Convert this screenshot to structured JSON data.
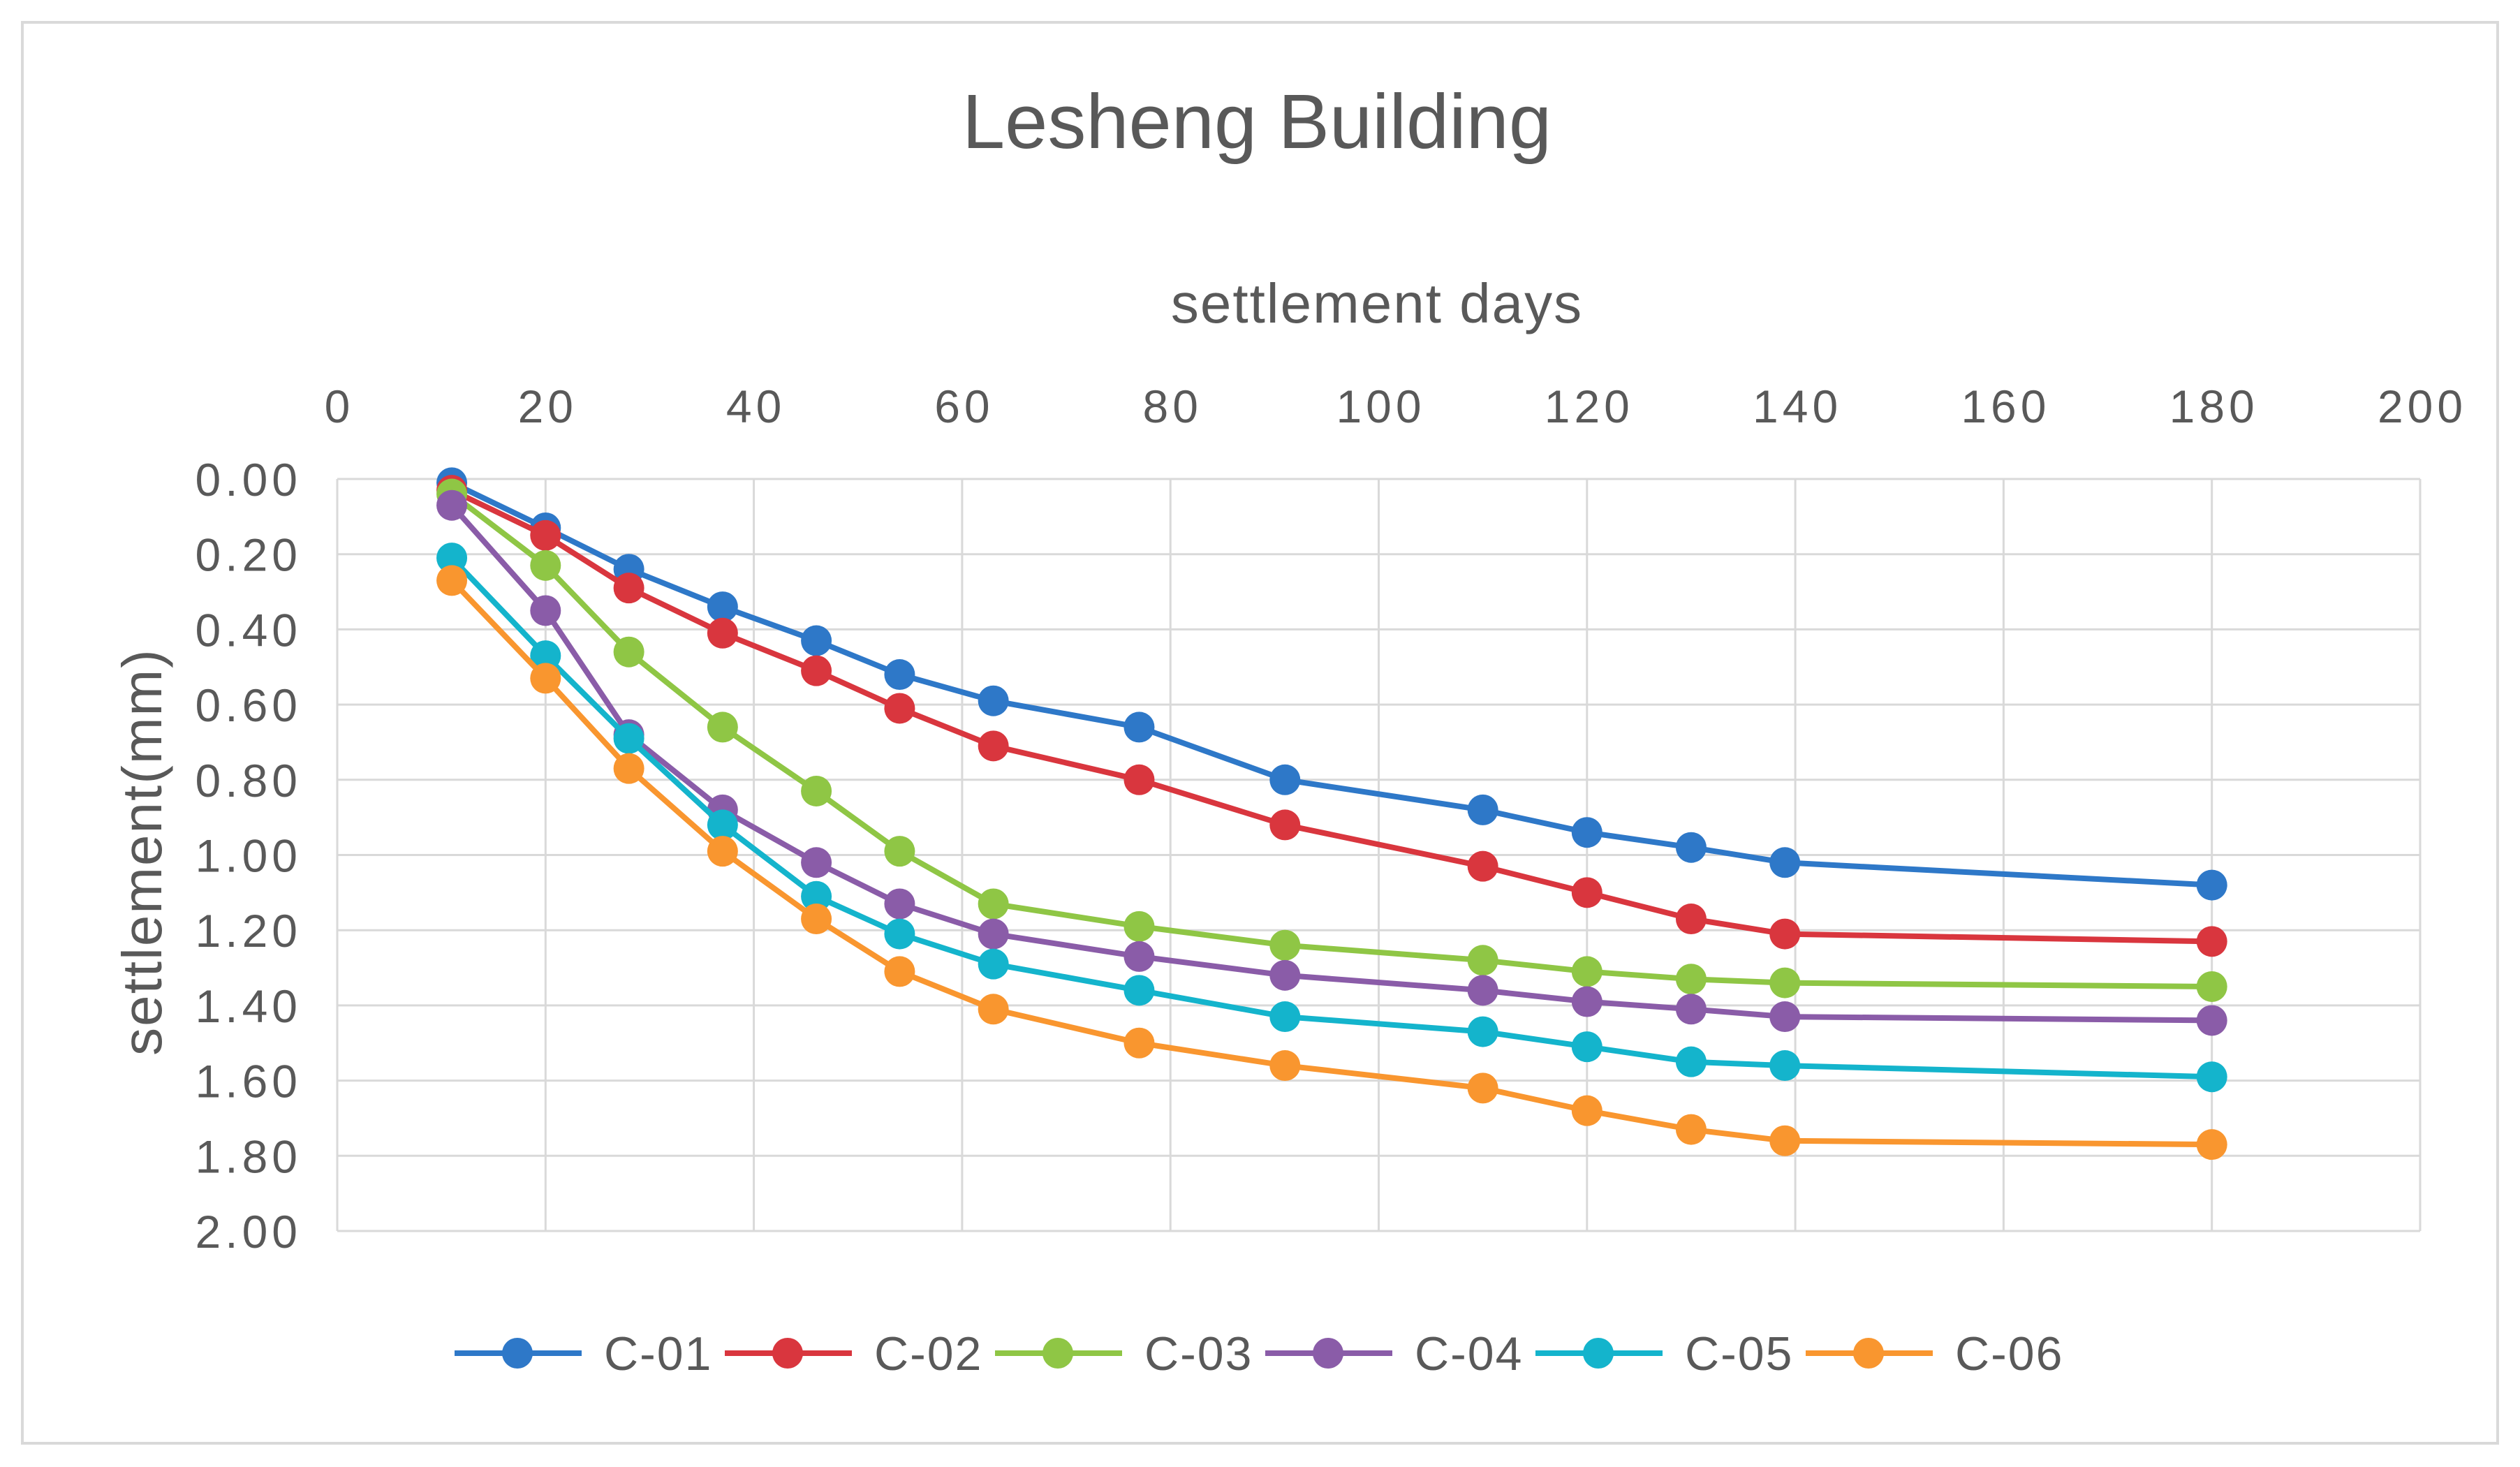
{
  "chart_data": {
    "type": "line",
    "title": "Lesheng Building",
    "xlabel": "settlement days",
    "ylabel": "settlement(mm)",
    "xlim": [
      0,
      200
    ],
    "ylim": [
      0,
      2
    ],
    "y_inverted": true,
    "x_axis_position": "top",
    "grid": true,
    "legend": "bottom",
    "xticks": [
      "0",
      "20",
      "40",
      "60",
      "80",
      "100",
      "120",
      "140",
      "160",
      "180",
      "200"
    ],
    "yticks": [
      "0.00",
      "0.20",
      "0.40",
      "0.60",
      "0.80",
      "1.00",
      "1.20",
      "1.40",
      "1.60",
      "1.80",
      "2.00"
    ],
    "x": [
      11,
      20,
      28,
      37,
      46,
      54,
      63,
      77,
      91,
      110,
      120,
      130,
      139,
      180
    ],
    "series": [
      {
        "name": "C-01",
        "color": "#2E78C8",
        "values": [
          0.01,
          0.13,
          0.24,
          0.34,
          0.43,
          0.52,
          0.59,
          0.66,
          0.8,
          0.88,
          0.94,
          0.98,
          1.02,
          1.08
        ]
      },
      {
        "name": "C-02",
        "color": "#D9363E",
        "values": [
          0.03,
          0.15,
          0.29,
          0.41,
          0.51,
          0.61,
          0.71,
          0.8,
          0.92,
          1.03,
          1.1,
          1.17,
          1.21,
          1.23
        ]
      },
      {
        "name": "C-03",
        "color": "#8FC645",
        "values": [
          0.04,
          0.23,
          0.46,
          0.66,
          0.83,
          0.99,
          1.13,
          1.19,
          1.24,
          1.28,
          1.31,
          1.33,
          1.34,
          1.35
        ]
      },
      {
        "name": "C-04",
        "color": "#8A5CA8",
        "values": [
          0.07,
          0.35,
          0.68,
          0.88,
          1.02,
          1.13,
          1.21,
          1.27,
          1.32,
          1.36,
          1.39,
          1.41,
          1.43,
          1.44
        ]
      },
      {
        "name": "C-05",
        "color": "#14B4CC",
        "values": [
          0.21,
          0.47,
          0.69,
          0.92,
          1.11,
          1.21,
          1.29,
          1.36,
          1.43,
          1.47,
          1.51,
          1.55,
          1.56,
          1.59
        ]
      },
      {
        "name": "C-06",
        "color": "#F9962F",
        "values": [
          0.27,
          0.53,
          0.77,
          0.99,
          1.17,
          1.31,
          1.41,
          1.5,
          1.56,
          1.62,
          1.68,
          1.73,
          1.76,
          1.77
        ]
      }
    ]
  }
}
